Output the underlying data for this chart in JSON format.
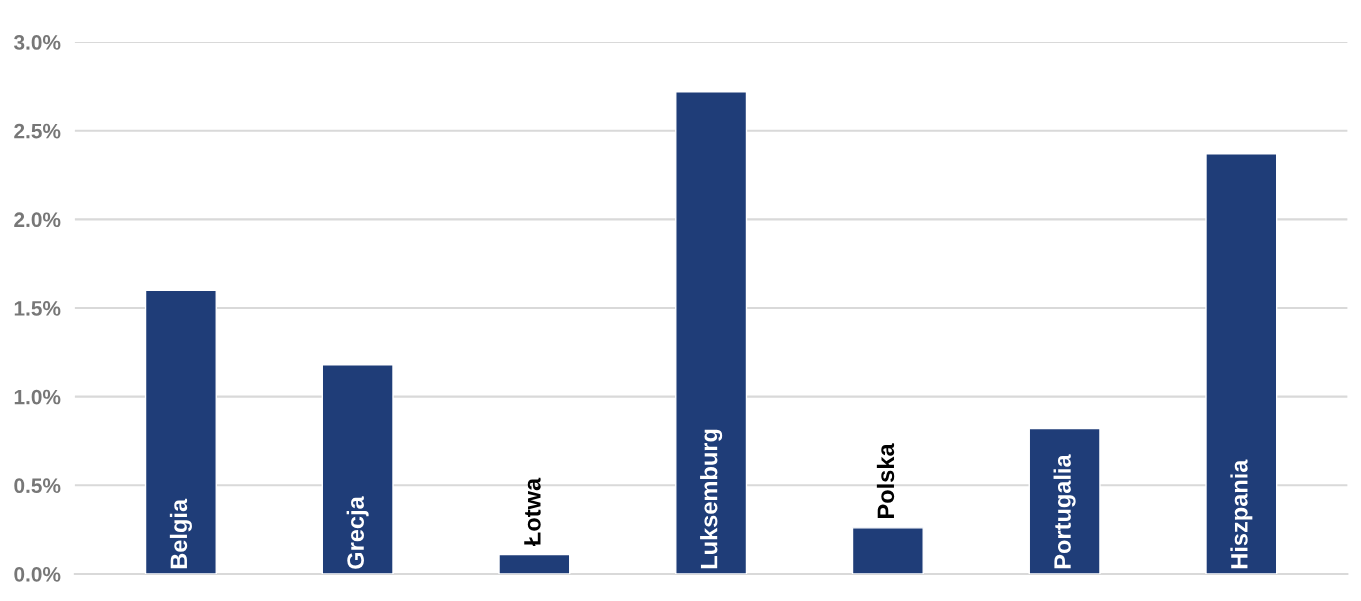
{
  "chart_data": {
    "type": "bar",
    "categories": [
      "Belgia",
      "Grecja",
      "Łotwa",
      "Luksemburg",
      "Polska",
      "Portugalia",
      "Hiszpania"
    ],
    "values": [
      1.6,
      1.18,
      0.11,
      2.72,
      0.26,
      0.82,
      2.37
    ],
    "color": "#1f3d78",
    "ylim": [
      0,
      3.0
    ],
    "yticks": [
      {
        "value": 0,
        "label": "0.0%"
      },
      {
        "value": 0.5,
        "label": "0.5%"
      },
      {
        "value": 1.0,
        "label": "1.0%"
      },
      {
        "value": 1.5,
        "label": "1.5%"
      },
      {
        "value": 2.0,
        "label": "2.0%"
      },
      {
        "value": 2.5,
        "label": "2.5%"
      },
      {
        "value": 3.0,
        "label": "3.0%"
      }
    ],
    "grid": "y"
  }
}
